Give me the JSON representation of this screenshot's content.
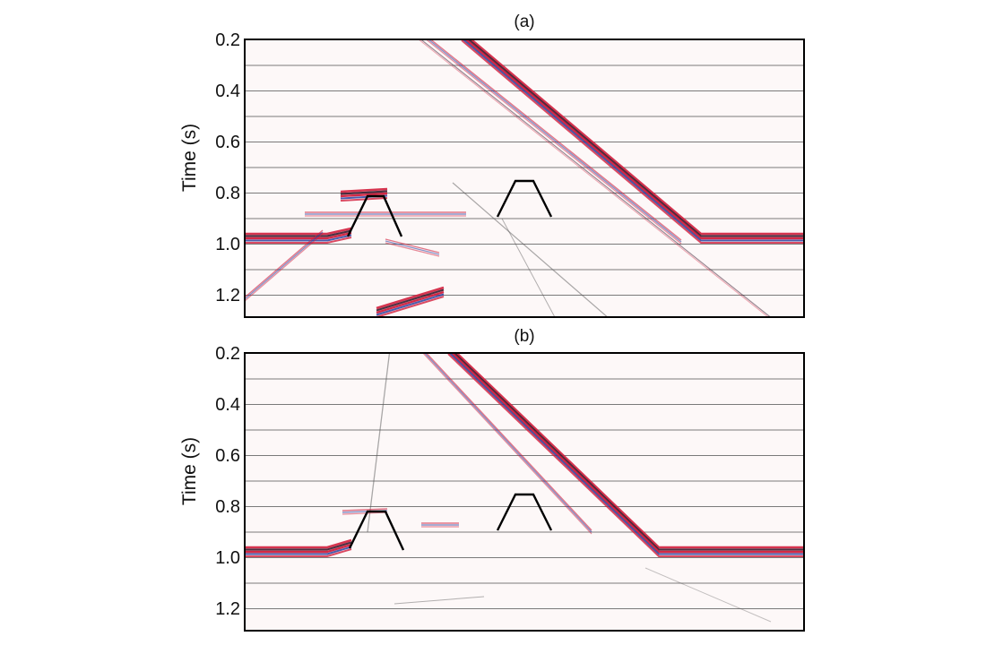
{
  "figure": {
    "panels": [
      {
        "label": "(a)",
        "ylabel": "Time (s)",
        "yticks": [
          "0.2",
          "0.4",
          "0.6",
          "0.8",
          "1.0",
          "1.2"
        ]
      },
      {
        "label": "(b)",
        "ylabel": "Time (s)",
        "yticks": [
          "0.2",
          "0.4",
          "0.6",
          "0.8",
          "1.0",
          "1.2"
        ]
      }
    ]
  },
  "colors": {
    "event_red": "#d21e3c",
    "event_blue": "#2a3f9e",
    "event_dark": "#3a1a2e",
    "trace_gray": "#555555",
    "model_outline": "#000000"
  }
}
